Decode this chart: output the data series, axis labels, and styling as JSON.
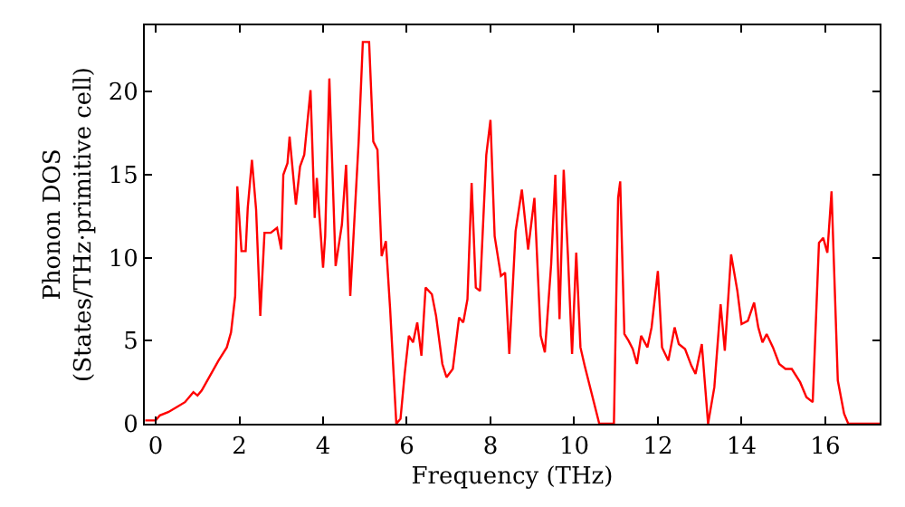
{
  "chart_data": {
    "type": "line",
    "xlabel": "Frequency (THz)",
    "ylabel": "Phonon DOS\n(States/THz·primitive cell)",
    "x": [
      -0.25,
      0.0,
      0.1,
      0.3,
      0.5,
      0.7,
      0.9,
      1.0,
      1.1,
      1.3,
      1.5,
      1.7,
      1.8,
      1.9,
      1.95,
      2.05,
      2.15,
      2.2,
      2.3,
      2.4,
      2.5,
      2.6,
      2.75,
      2.9,
      3.0,
      3.05,
      3.15,
      3.2,
      3.35,
      3.45,
      3.55,
      3.7,
      3.8,
      3.85,
      4.0,
      4.05,
      4.15,
      4.3,
      4.45,
      4.55,
      4.65,
      4.85,
      4.95,
      5.1,
      5.2,
      5.3,
      5.4,
      5.5,
      5.6,
      5.75,
      5.85,
      5.95,
      6.05,
      6.15,
      6.25,
      6.35,
      6.45,
      6.6,
      6.7,
      6.85,
      6.95,
      7.1,
      7.25,
      7.35,
      7.45,
      7.55,
      7.65,
      7.75,
      7.9,
      8.0,
      8.1,
      8.25,
      8.35,
      8.45,
      8.6,
      8.75,
      8.9,
      9.05,
      9.2,
      9.3,
      9.45,
      9.55,
      9.65,
      9.75,
      9.85,
      9.95,
      10.05,
      10.15,
      10.25,
      10.6,
      10.8,
      10.95,
      11.05,
      11.1,
      11.2,
      11.3,
      11.4,
      11.5,
      11.6,
      11.75,
      11.85,
      12.0,
      12.1,
      12.25,
      12.4,
      12.5,
      12.65,
      12.8,
      12.9,
      13.05,
      13.2,
      13.35,
      13.5,
      13.6,
      13.75,
      13.9,
      14.0,
      14.15,
      14.3,
      14.4,
      14.5,
      14.6,
      14.75,
      14.9,
      15.05,
      15.2,
      15.4,
      15.55,
      15.7,
      15.85,
      15.95,
      16.05,
      16.15,
      16.3,
      16.45,
      16.55,
      17.3
    ],
    "series": [
      {
        "color": "#ff0000",
        "values": [
          0.2,
          0.2,
          0.5,
          0.7,
          1.0,
          1.3,
          1.9,
          1.7,
          2.0,
          2.9,
          3.8,
          4.6,
          5.5,
          7.7,
          14.3,
          10.4,
          10.4,
          13.0,
          15.9,
          12.9,
          6.5,
          11.5,
          11.5,
          11.8,
          10.5,
          15.0,
          15.7,
          17.3,
          13.2,
          15.5,
          16.2,
          20.1,
          12.4,
          14.8,
          9.4,
          11.3,
          20.8,
          9.5,
          12.0,
          15.6,
          7.7,
          17.0,
          23.0,
          23.0,
          17.0,
          16.5,
          10.1,
          11.0,
          7.0,
          0.0,
          0.3,
          3.0,
          5.3,
          4.9,
          6.1,
          4.1,
          8.2,
          7.8,
          6.5,
          3.6,
          2.8,
          3.3,
          6.4,
          6.1,
          7.5,
          14.5,
          8.2,
          8.0,
          16.2,
          18.3,
          11.3,
          8.9,
          9.1,
          4.2,
          11.6,
          14.1,
          10.5,
          13.6,
          5.3,
          4.3,
          9.6,
          15.0,
          6.3,
          15.3,
          10.2,
          4.2,
          10.3,
          4.6,
          3.5,
          0.0,
          0.0,
          0.0,
          13.6,
          14.6,
          5.4,
          5.0,
          4.5,
          3.6,
          5.3,
          4.6,
          5.8,
          9.2,
          4.6,
          3.8,
          5.8,
          4.8,
          4.5,
          3.5,
          3.0,
          4.8,
          0.0,
          2.2,
          7.2,
          4.4,
          10.2,
          8.0,
          6.0,
          6.2,
          7.3,
          5.8,
          4.9,
          5.4,
          4.6,
          3.6,
          3.3,
          3.3,
          2.5,
          1.6,
          1.3,
          10.9,
          11.2,
          10.3,
          14.0,
          2.6,
          0.6,
          0.0,
          0.0
        ]
      }
    ],
    "xlim": [
      -0.26,
      17.3
    ],
    "ylim": [
      0,
      24
    ],
    "xticks": [
      0,
      2,
      4,
      6,
      8,
      10,
      12,
      14,
      16
    ],
    "yticks": [
      0,
      5,
      10,
      15,
      20
    ],
    "legend": false,
    "line_style": "solid",
    "marker": "none"
  }
}
